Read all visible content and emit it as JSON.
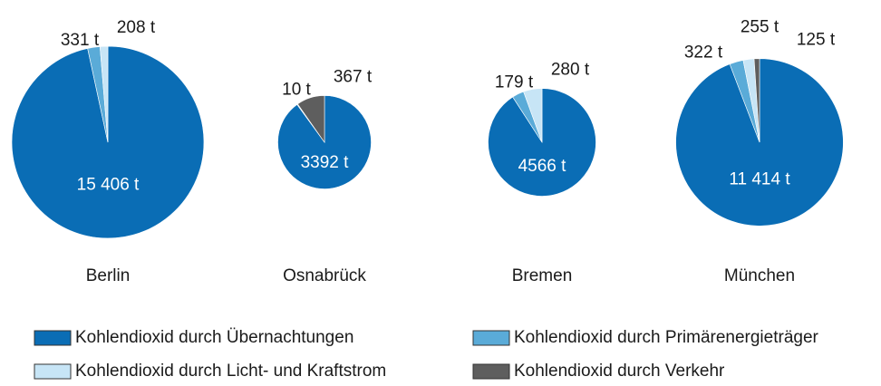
{
  "chart_data": {
    "type": "pie",
    "categories": [
      "Berlin",
      "Osnabrück",
      "Bremen",
      "München"
    ],
    "series": [
      {
        "name": "Kohlendioxid durch Übernachtungen",
        "color": "#0a6db5",
        "values": [
          15406,
          3392,
          4566,
          11414
        ],
        "value_labels": [
          "15 406 t",
          "3392 t",
          "4566 t",
          "11 414 t"
        ]
      },
      {
        "name": "Kohlendioxid durch Primärenergieträger",
        "color": "#5aabd8",
        "values": [
          331,
          null,
          179,
          322
        ],
        "value_labels": [
          "331 t",
          null,
          "179 t",
          "322 t"
        ]
      },
      {
        "name": "Kohlendioxid durch Licht- und Kraftstrom",
        "color": "#c7e5f6",
        "values": [
          208,
          10,
          280,
          255
        ],
        "value_labels": [
          "208 t",
          "10 t",
          "280 t",
          "255 t"
        ]
      },
      {
        "name": "Kohlendioxid durch Verkehr",
        "color": "#5e5e5e",
        "values": [
          null,
          367,
          null,
          125
        ],
        "value_labels": [
          null,
          "367 t",
          null,
          "125 t"
        ]
      }
    ]
  }
}
